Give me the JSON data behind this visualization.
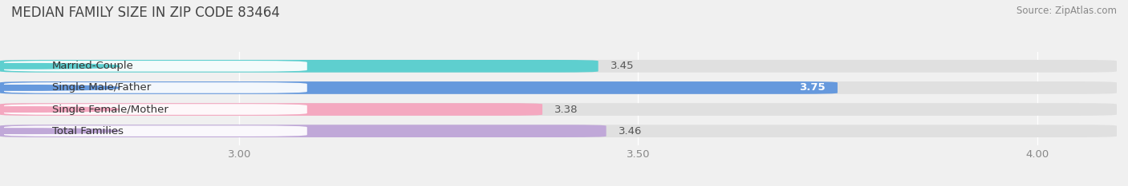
{
  "title": "MEDIAN FAMILY SIZE IN ZIP CODE 83464",
  "source": "Source: ZipAtlas.com",
  "categories": [
    "Married-Couple",
    "Single Male/Father",
    "Single Female/Mother",
    "Total Families"
  ],
  "values": [
    3.45,
    3.75,
    3.38,
    3.46
  ],
  "bar_colors": [
    "#5ecfcf",
    "#6699dd",
    "#f4a8c0",
    "#c0a8d8"
  ],
  "bar_labels": [
    "3.45",
    "3.75",
    "3.38",
    "3.46"
  ],
  "label_inside": [
    false,
    true,
    false,
    false
  ],
  "xmin": 2.7,
  "xmax": 4.1,
  "bar_xstart": 2.7,
  "xticks": [
    3.0,
    3.5,
    4.0
  ],
  "xtick_labels": [
    "3.00",
    "3.50",
    "4.00"
  ],
  "background_color": "#f0f0f0",
  "bar_height": 0.58,
  "bar_background_color": "#e0e0e0",
  "title_fontsize": 12,
  "label_fontsize": 9.5,
  "tick_fontsize": 9.5,
  "source_fontsize": 8.5
}
